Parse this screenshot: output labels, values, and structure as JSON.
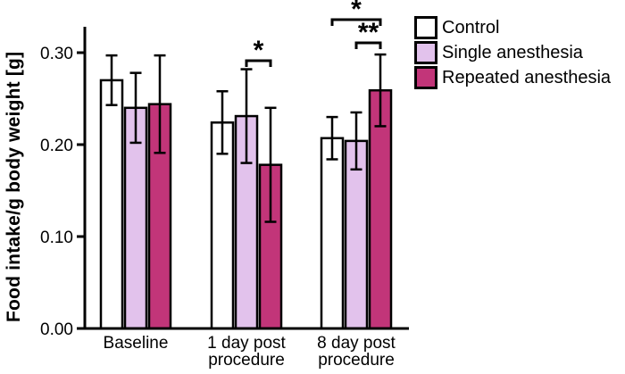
{
  "chart_data": {
    "type": "bar",
    "title": "",
    "ylabel": "Food intake/g body weight [g]",
    "xlabel": "",
    "categories": [
      "Baseline",
      "1 day post\nprocedure",
      "8 day post\nprocedure"
    ],
    "yticks": [
      0.0,
      0.1,
      0.2,
      0.3
    ],
    "ylim": [
      0,
      0.32
    ],
    "grid": false,
    "legend_position": "top-right",
    "series": [
      {
        "name": "Control",
        "color": "#ffffff",
        "values": [
          0.27,
          0.224,
          0.207
        ],
        "errors": [
          0.027,
          0.034,
          0.023
        ]
      },
      {
        "name": "Single anesthesia",
        "color": "#e2c2ec",
        "values": [
          0.24,
          0.231,
          0.204
        ],
        "errors": [
          0.038,
          0.051,
          0.031
        ]
      },
      {
        "name": "Repeated anesthesia",
        "color": "#c23579",
        "values": [
          0.244,
          0.178,
          0.259
        ],
        "errors": [
          0.053,
          0.062,
          0.039
        ]
      }
    ],
    "significance": [
      {
        "group": 1,
        "from_series": 1,
        "to_series": 2,
        "label": "*"
      },
      {
        "group": 2,
        "from_series": 0,
        "to_series": 2,
        "label": "*"
      },
      {
        "group": 2,
        "from_series": 1,
        "to_series": 2,
        "label": "**"
      }
    ]
  }
}
